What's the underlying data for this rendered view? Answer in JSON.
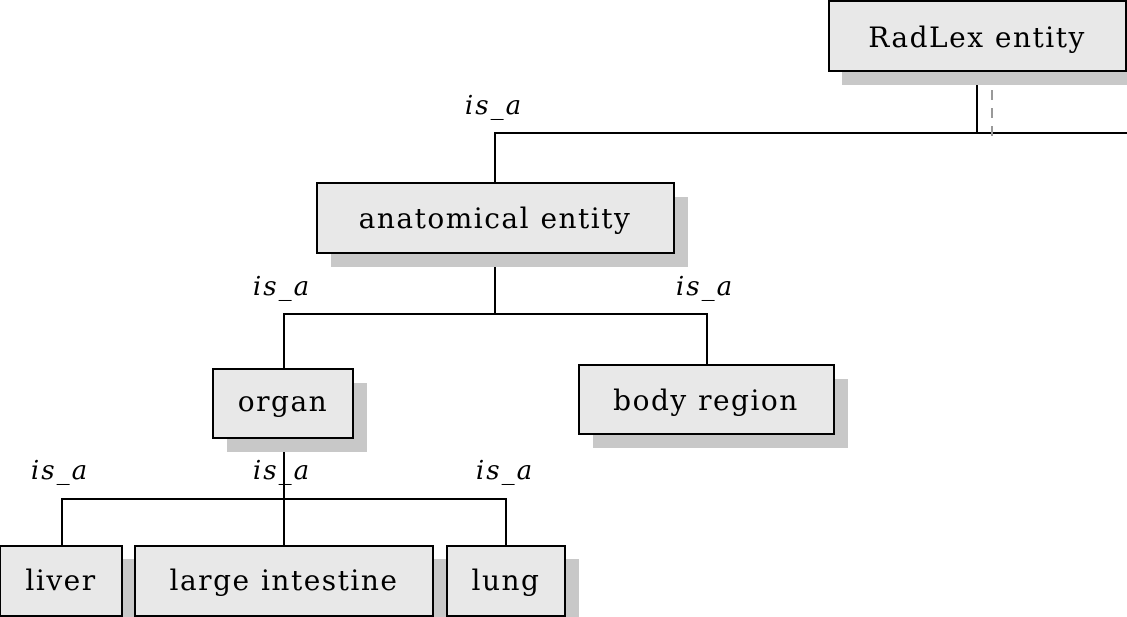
{
  "nodes": {
    "radlex": "RadLex entity",
    "anatomical": "anatomical entity",
    "organ": "organ",
    "body_region": "body region",
    "liver": "liver",
    "large_intestine": "large intestine",
    "lung": "lung"
  },
  "relations": {
    "anatomical_to_radlex": "is_a",
    "organ_to_anatomical": "is_a",
    "body_region_to_anatomical": "is_a",
    "liver_to_organ": "is_a",
    "large_intestine_to_organ": "is_a",
    "lung_to_organ": "is_a"
  }
}
